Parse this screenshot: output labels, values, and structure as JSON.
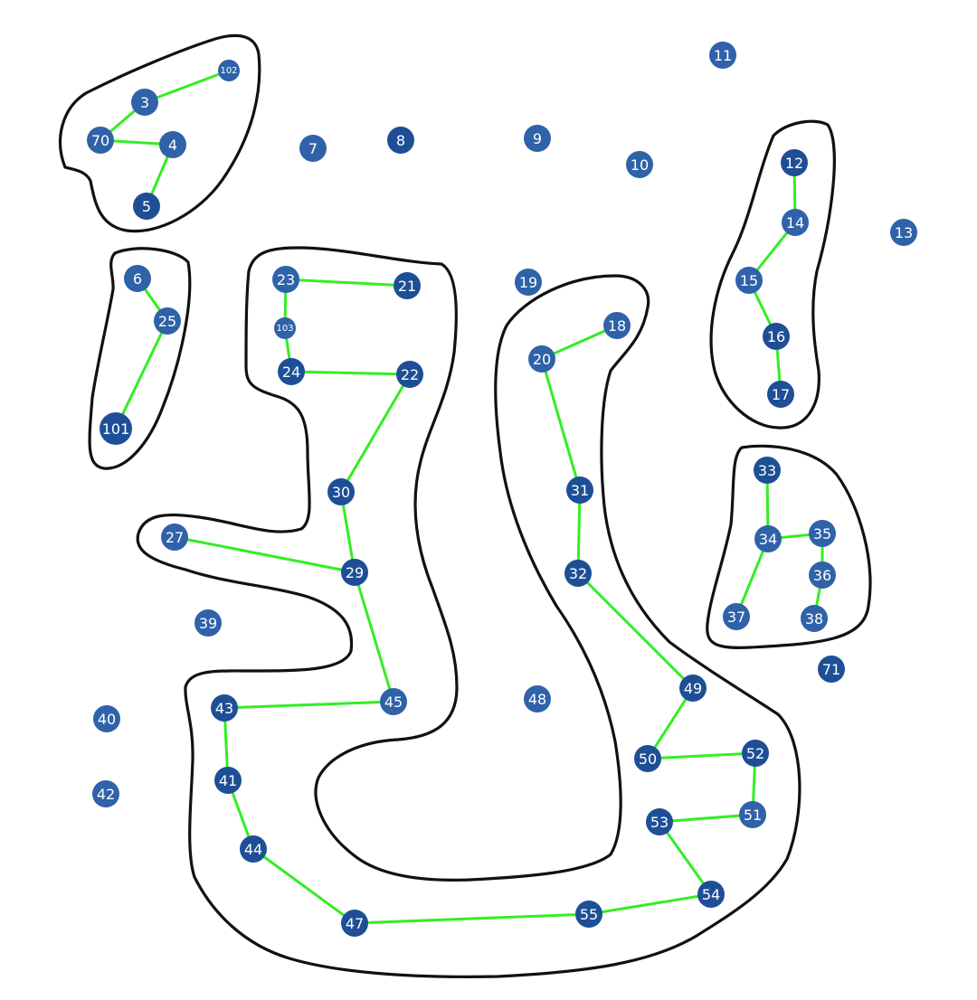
{
  "diagram": {
    "colors": {
      "node_fill": "#2f62a8",
      "node_fill_dark": "#1e4f96",
      "edge": "#33ee22",
      "outline": "#111111",
      "label": "#ffffff"
    },
    "nodes": [
      "102",
      "3",
      "70",
      "4",
      "5",
      "7",
      "8",
      "9",
      "10",
      "11",
      "12",
      "14",
      "13",
      "15",
      "16",
      "17",
      "6",
      "25",
      "101",
      "23",
      "21",
      "103",
      "24",
      "22",
      "19",
      "18",
      "20",
      "30",
      "31",
      "27",
      "29",
      "32",
      "33",
      "34",
      "35",
      "36",
      "37",
      "38",
      "39",
      "71",
      "40",
      "43",
      "45",
      "48",
      "49",
      "50",
      "52",
      "41",
      "42",
      "53",
      "51",
      "44",
      "54",
      "47",
      "55"
    ],
    "edges": [
      [
        "3",
        "102"
      ],
      [
        "3",
        "70"
      ],
      [
        "70",
        "4"
      ],
      [
        "4",
        "5"
      ],
      [
        "12",
        "14"
      ],
      [
        "14",
        "15"
      ],
      [
        "15",
        "16"
      ],
      [
        "16",
        "17"
      ],
      [
        "6",
        "25"
      ],
      [
        "25",
        "101"
      ],
      [
        "23",
        "21"
      ],
      [
        "23",
        "103"
      ],
      [
        "103",
        "24"
      ],
      [
        "24",
        "22"
      ],
      [
        "22",
        "30"
      ],
      [
        "30",
        "29"
      ],
      [
        "27",
        "29"
      ],
      [
        "29",
        "45"
      ],
      [
        "45",
        "43"
      ],
      [
        "43",
        "41"
      ],
      [
        "41",
        "44"
      ],
      [
        "44",
        "47"
      ],
      [
        "47",
        "55"
      ],
      [
        "55",
        "54"
      ],
      [
        "54",
        "53"
      ],
      [
        "53",
        "51"
      ],
      [
        "51",
        "52"
      ],
      [
        "52",
        "50"
      ],
      [
        "50",
        "49"
      ],
      [
        "49",
        "32"
      ],
      [
        "32",
        "31"
      ],
      [
        "31",
        "20"
      ],
      [
        "20",
        "18"
      ],
      [
        "33",
        "34"
      ],
      [
        "34",
        "35"
      ],
      [
        "35",
        "36"
      ],
      [
        "36",
        "38"
      ],
      [
        "34",
        "37"
      ]
    ]
  }
}
